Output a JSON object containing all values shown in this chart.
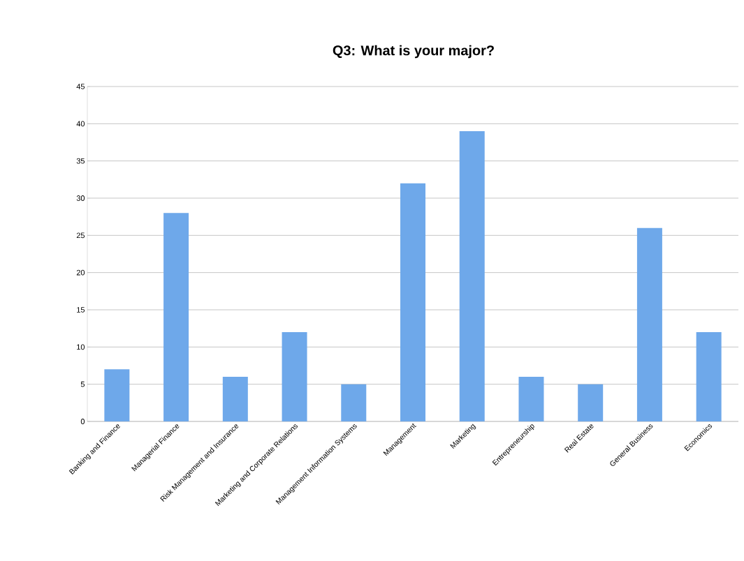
{
  "chart_data": {
    "type": "bar",
    "title": "Q3: What is your major?",
    "categories": [
      "Banking and Finance",
      "Managerial Finance",
      "Risk Management and Insurance",
      "Marketing and Corporate Relations",
      "Management Information Systems",
      "Management",
      "Marketing",
      "Entrepreneurship",
      "Real Estate",
      "General Business",
      "Economics"
    ],
    "values": [
      7,
      28,
      6,
      12,
      5,
      32,
      39,
      6,
      5,
      26,
      12
    ],
    "color": "#6ea8ea",
    "ylim": [
      0,
      45
    ],
    "yticks": [
      0,
      5,
      10,
      15,
      20,
      25,
      30,
      35,
      40,
      45
    ],
    "grid": "y"
  }
}
